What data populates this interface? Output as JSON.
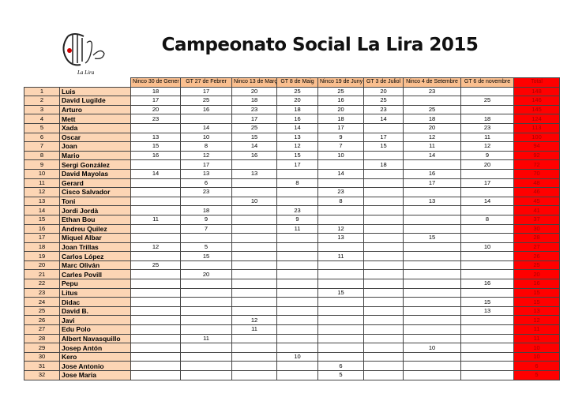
{
  "header": {
    "logo_text": "La Lira",
    "title": "Campeonato Social La Lira 2015"
  },
  "table": {
    "columns": [
      "Ninco 30 de Gener",
      "GT 27 de Febrer",
      "Ninco 13 de Març",
      "GT 8 de Maig",
      "Ninco 19 de Juny",
      "GT 3 de Juliol",
      "Ninco 4 de Setembre",
      "GT 6 de novembre",
      "Total"
    ],
    "rows": [
      [
        1,
        "Luis",
        18,
        17,
        20,
        25,
        25,
        20,
        23,
        null,
        148
      ],
      [
        2,
        "David Lugilde",
        17,
        25,
        18,
        20,
        16,
        25,
        null,
        25,
        146
      ],
      [
        3,
        "Arturo",
        20,
        16,
        23,
        18,
        20,
        23,
        25,
        null,
        145
      ],
      [
        4,
        "Mett",
        23,
        null,
        17,
        16,
        18,
        14,
        18,
        18,
        124
      ],
      [
        5,
        "Xada",
        null,
        14,
        25,
        14,
        17,
        null,
        20,
        23,
        113
      ],
      [
        6,
        "Oscar",
        13,
        10,
        15,
        13,
        9,
        17,
        12,
        11,
        100
      ],
      [
        7,
        "Joan",
        15,
        8,
        14,
        12,
        7,
        15,
        11,
        12,
        94
      ],
      [
        8,
        "Mario",
        16,
        12,
        16,
        15,
        10,
        null,
        14,
        9,
        92
      ],
      [
        9,
        "Sergi González",
        null,
        17,
        null,
        17,
        null,
        18,
        null,
        20,
        72
      ],
      [
        10,
        "David Mayolas",
        14,
        13,
        13,
        null,
        14,
        null,
        16,
        null,
        70
      ],
      [
        11,
        "Gerard",
        null,
        6,
        null,
        8,
        null,
        null,
        17,
        17,
        48
      ],
      [
        12,
        "Cisco Salvador",
        null,
        23,
        null,
        null,
        23,
        null,
        null,
        null,
        46
      ],
      [
        13,
        "Toni",
        null,
        null,
        10,
        null,
        8,
        null,
        13,
        14,
        45
      ],
      [
        14,
        "Jordi Jordà",
        null,
        18,
        null,
        23,
        null,
        null,
        null,
        null,
        41
      ],
      [
        15,
        "Ethan Bou",
        11,
        9,
        null,
        9,
        null,
        null,
        null,
        8,
        37
      ],
      [
        16,
        "Andreu Quilez",
        null,
        7,
        null,
        11,
        12,
        null,
        null,
        null,
        30
      ],
      [
        17,
        "Miquel Albar",
        null,
        null,
        null,
        null,
        13,
        null,
        15,
        null,
        28
      ],
      [
        18,
        "Joan Trillas",
        12,
        5,
        null,
        null,
        null,
        null,
        null,
        10,
        27
      ],
      [
        19,
        "Carlos López",
        null,
        15,
        null,
        null,
        11,
        null,
        null,
        null,
        26
      ],
      [
        20,
        "Marc Oliván",
        25,
        null,
        null,
        null,
        null,
        null,
        null,
        null,
        25
      ],
      [
        21,
        "Carles Povill",
        null,
        20,
        null,
        null,
        null,
        null,
        null,
        null,
        20
      ],
      [
        22,
        "Pepu",
        null,
        null,
        null,
        null,
        null,
        null,
        null,
        16,
        16
      ],
      [
        23,
        "Litus",
        null,
        null,
        null,
        null,
        15,
        null,
        null,
        null,
        15
      ],
      [
        24,
        "Didac",
        null,
        null,
        null,
        null,
        null,
        null,
        null,
        15,
        15
      ],
      [
        25,
        "David B.",
        null,
        null,
        null,
        null,
        null,
        null,
        null,
        13,
        13
      ],
      [
        26,
        "Javi",
        null,
        null,
        12,
        null,
        null,
        null,
        null,
        null,
        12
      ],
      [
        27,
        "Edu Polo",
        null,
        null,
        11,
        null,
        null,
        null,
        null,
        null,
        11
      ],
      [
        28,
        "Albert Navasquillo",
        null,
        11,
        null,
        null,
        null,
        null,
        null,
        null,
        11
      ],
      [
        29,
        "Josep Antón",
        null,
        null,
        null,
        null,
        null,
        null,
        10,
        null,
        10
      ],
      [
        30,
        "Kero",
        null,
        null,
        null,
        10,
        null,
        null,
        null,
        null,
        10
      ],
      [
        31,
        "Jose Antonio",
        null,
        null,
        null,
        null,
        6,
        null,
        null,
        null,
        6
      ],
      [
        32,
        "Jose Maria",
        null,
        null,
        null,
        null,
        5,
        null,
        null,
        null,
        5
      ]
    ]
  }
}
